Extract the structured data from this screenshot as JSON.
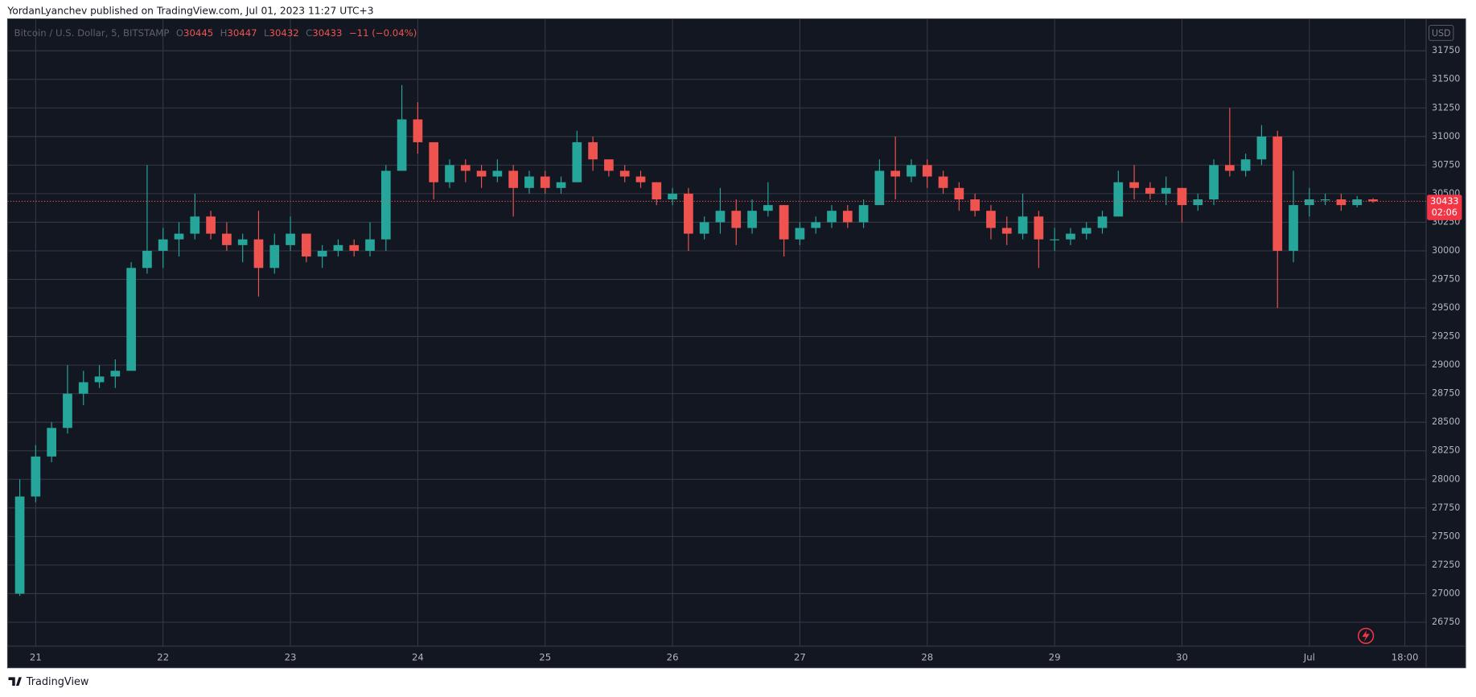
{
  "chart_data": {
    "type": "candlestick",
    "publisher_note": "YordanLyanchev published on TradingView.com, Jul 01, 2023 11:27 UTC+3",
    "symbol": "Bitcoin / U.S. Dollar, 5, BITSTAMP",
    "last_bar_labels": [
      "O",
      "H",
      "L",
      "C"
    ],
    "last_bar": {
      "open": 30445,
      "high": 30447,
      "low": 30432,
      "close": 30433,
      "change": "−11 (−0.04%)"
    },
    "currency": "USD",
    "last_price": 30433,
    "countdown": "02:06",
    "brand": "TradingView",
    "up_color": "#26a69a",
    "down_color": "#ef5350",
    "grid": true,
    "categories": [
      null,
      "21",
      null,
      null,
      null,
      null,
      null,
      null,
      null,
      "22",
      null,
      null,
      null,
      null,
      null,
      null,
      null,
      "23",
      null,
      null,
      null,
      null,
      null,
      null,
      null,
      "24",
      null,
      null,
      null,
      null,
      null,
      null,
      null,
      "25",
      null,
      null,
      null,
      null,
      null,
      null,
      null,
      "26",
      null,
      null,
      null,
      null,
      null,
      null,
      null,
      "27",
      null,
      null,
      null,
      null,
      null,
      null,
      null,
      "28",
      null,
      null,
      null,
      null,
      null,
      null,
      null,
      "29",
      null,
      null,
      null,
      null,
      null,
      null,
      null,
      "30",
      null,
      null,
      null,
      null,
      null,
      null,
      null,
      "Jul",
      null,
      null,
      null,
      null,
      null,
      "18:00",
      null
    ],
    "open": [
      27000,
      27850,
      28200,
      28450,
      28750,
      28850,
      28900,
      28950,
      29850,
      30000,
      30100,
      30150,
      30300,
      30150,
      30050,
      30100,
      29850,
      30050,
      30150,
      29950,
      30000,
      30050,
      30000,
      30100,
      30700,
      31150,
      30950,
      30600,
      30750,
      30700,
      30650,
      30700,
      30550,
      30650,
      30550,
      30600,
      30950,
      30800,
      30700,
      30650,
      30600,
      30450,
      30500,
      30150,
      30250,
      30350,
      30200,
      30350,
      30400,
      30100,
      30200,
      30250,
      30350,
      30250,
      30400,
      30700,
      30650,
      30750,
      30650,
      30550,
      30450,
      30350,
      30200,
      30150,
      30300,
      30100,
      30100,
      30150,
      30200,
      30300,
      30600,
      30550,
      30500,
      30550,
      30400,
      30450,
      30750,
      30700,
      30800,
      31000,
      30000,
      30400,
      30450,
      30450,
      30400,
      30450,
      null,
      null,
      null
    ],
    "high": [
      28000,
      28300,
      28500,
      29000,
      28950,
      29000,
      29050,
      29900,
      30750,
      30200,
      30250,
      30500,
      30350,
      30250,
      30150,
      30350,
      30150,
      30300,
      30150,
      30050,
      30100,
      30100,
      30250,
      30750,
      31450,
      31300,
      30950,
      30800,
      30800,
      30750,
      30800,
      30750,
      30700,
      30700,
      30650,
      31050,
      31000,
      30800,
      30750,
      30700,
      30600,
      30550,
      30550,
      30300,
      30550,
      30450,
      30450,
      30600,
      30400,
      30250,
      30300,
      30400,
      30400,
      30450,
      30800,
      31000,
      30800,
      30800,
      30700,
      30600,
      30500,
      30400,
      30300,
      30500,
      30350,
      30200,
      30200,
      30250,
      30350,
      30700,
      30750,
      30600,
      30650,
      30550,
      30500,
      30800,
      31250,
      30850,
      31100,
      31050,
      30700,
      30550,
      30500,
      30500,
      30480,
      30460,
      null,
      null,
      null
    ],
    "low": [
      26980,
      27800,
      28150,
      28400,
      28650,
      28800,
      28800,
      28950,
      29800,
      29850,
      29950,
      30100,
      30100,
      30000,
      29900,
      29600,
      29800,
      30000,
      29900,
      29850,
      29950,
      29950,
      29950,
      30000,
      30700,
      30850,
      30450,
      30550,
      30600,
      30550,
      30600,
      30300,
      30500,
      30500,
      30500,
      30600,
      30700,
      30650,
      30600,
      30550,
      30400,
      30400,
      30000,
      30100,
      30150,
      30050,
      30150,
      30300,
      29950,
      30050,
      30150,
      30200,
      30200,
      30200,
      30400,
      30450,
      30600,
      30550,
      30500,
      30350,
      30300,
      30100,
      30050,
      30100,
      29850,
      30000,
      30050,
      30100,
      30150,
      30300,
      30450,
      30450,
      30400,
      30250,
      30350,
      30400,
      30650,
      30650,
      30750,
      29500,
      29900,
      30300,
      30400,
      30350,
      30380,
      30420,
      null,
      null,
      null
    ],
    "close": [
      27850,
      28200,
      28450,
      28750,
      28850,
      28900,
      28950,
      29850,
      30000,
      30100,
      30150,
      30300,
      30150,
      30050,
      30100,
      29850,
      30050,
      30150,
      29950,
      30000,
      30050,
      30000,
      30100,
      30700,
      31150,
      30950,
      30600,
      30750,
      30700,
      30650,
      30700,
      30550,
      30650,
      30550,
      30600,
      30950,
      30800,
      30700,
      30650,
      30600,
      30450,
      30500,
      30150,
      30250,
      30350,
      30200,
      30350,
      30400,
      30100,
      30200,
      30250,
      30350,
      30250,
      30400,
      30700,
      30650,
      30750,
      30650,
      30550,
      30450,
      30350,
      30200,
      30150,
      30300,
      30100,
      30100,
      30150,
      30200,
      30300,
      30600,
      30550,
      30500,
      30550,
      30400,
      30450,
      30750,
      30700,
      30800,
      31000,
      30000,
      30400,
      30450,
      30450,
      30400,
      30450,
      30433,
      null,
      null,
      null
    ],
    "ylim": [
      26540,
      32030
    ],
    "yticks": [
      26750,
      27000,
      27250,
      27500,
      27750,
      28000,
      28250,
      28500,
      28750,
      29000,
      29250,
      29500,
      29750,
      30000,
      30250,
      30500,
      30750,
      31000,
      31250,
      31500,
      31750
    ]
  }
}
